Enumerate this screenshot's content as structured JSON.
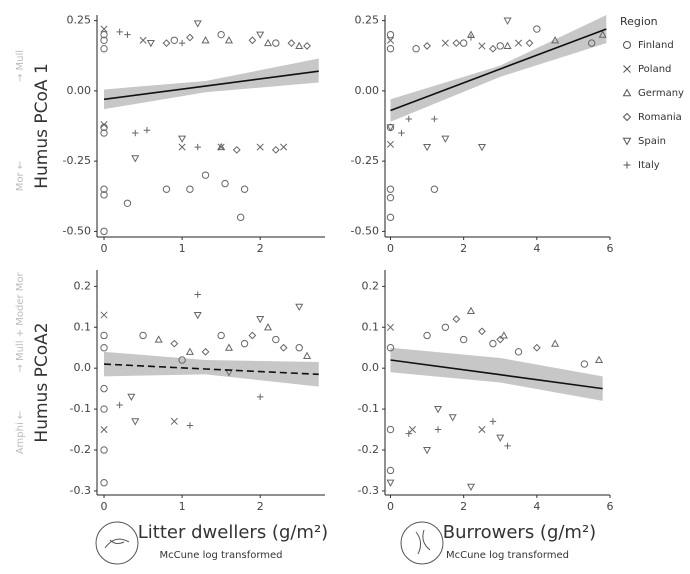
{
  "legend": {
    "title": "Region",
    "items": [
      {
        "name": "Finland",
        "marker": "circle"
      },
      {
        "name": "Poland",
        "marker": "x"
      },
      {
        "name": "Germany",
        "marker": "triangle"
      },
      {
        "name": "Romania",
        "marker": "diamond"
      },
      {
        "name": "Spain",
        "marker": "down"
      },
      {
        "name": "Italy",
        "marker": "plus"
      }
    ]
  },
  "chart_data": [
    {
      "type": "scatter",
      "ylabel": "Humus PCoA 1",
      "ylabel_note": [
        "Mor ←",
        "→ Mull"
      ],
      "xlim": [
        -0.09,
        2.83
      ],
      "ylim": [
        -0.52,
        0.27
      ],
      "xticks": [
        0,
        1,
        2
      ],
      "yticks": [
        {
          "value": -0.5,
          "label": "-0.50"
        },
        -0.25,
        {
          "value": 0,
          "label": "0.00"
        },
        0.25
      ],
      "series": [
        {
          "marker": "circle",
          "x": [
            0,
            0,
            0,
            0,
            0,
            0,
            0,
            0,
            0.3,
            0.8,
            1.1,
            1.3,
            1.55,
            1.8,
            1.75,
            0.9,
            1.5,
            2.2
          ],
          "y": [
            0.2,
            0.18,
            0.15,
            -0.13,
            -0.15,
            -0.35,
            -0.37,
            -0.5,
            -0.4,
            -0.35,
            -0.35,
            -0.3,
            -0.33,
            -0.35,
            -0.45,
            0.18,
            0.2,
            0.17
          ]
        },
        {
          "marker": "x",
          "x": [
            0,
            0,
            1.0,
            1.5,
            2.0,
            2.3,
            0.5
          ],
          "y": [
            0.22,
            -0.12,
            -0.2,
            -0.2,
            -0.2,
            -0.2,
            0.18
          ]
        },
        {
          "marker": "triangle",
          "x": [
            1.3,
            1.6,
            2.1,
            2.5,
            1.5
          ],
          "y": [
            0.18,
            0.18,
            0.17,
            0.16,
            -0.2
          ]
        },
        {
          "marker": "diamond",
          "x": [
            0.8,
            1.1,
            1.9,
            2.4,
            2.6,
            1.7,
            2.2
          ],
          "y": [
            0.17,
            0.19,
            0.18,
            0.17,
            0.16,
            -0.21,
            -0.21
          ]
        },
        {
          "marker": "down",
          "x": [
            1.2,
            0.6,
            0.4,
            1.0,
            2.0
          ],
          "y": [
            0.24,
            0.17,
            -0.24,
            -0.17,
            0.2
          ]
        },
        {
          "marker": "plus",
          "x": [
            0.2,
            0.3,
            0.4,
            0.55,
            1.2,
            1.0
          ],
          "y": [
            0.21,
            0.2,
            -0.15,
            -0.14,
            -0.2,
            0.17
          ]
        }
      ],
      "fit": {
        "dashed": false,
        "x": [
          0,
          1.3,
          2.75
        ],
        "y": [
          -0.03,
          0.017,
          0.07
        ],
        "lower": [
          -0.065,
          -0.005,
          0.03
        ],
        "upper": [
          0.005,
          0.035,
          0.115
        ]
      }
    },
    {
      "type": "scatter",
      "xlim": [
        -0.15,
        6.0
      ],
      "ylim": [
        -0.52,
        0.27
      ],
      "xticks": [
        0,
        2,
        4,
        6
      ],
      "yticks": [
        {
          "value": -0.5,
          "label": "-0.50"
        },
        -0.25,
        {
          "value": 0,
          "label": "0.00"
        },
        0.25
      ],
      "series": [
        {
          "marker": "circle",
          "x": [
            0,
            0,
            0,
            0,
            0,
            0,
            1.2,
            2,
            3,
            4,
            5.5,
            0.7
          ],
          "y": [
            0.2,
            0.15,
            -0.13,
            -0.35,
            -0.38,
            -0.45,
            -0.35,
            0.17,
            0.16,
            0.22,
            0.17,
            0.15
          ]
        },
        {
          "marker": "x",
          "x": [
            0,
            0,
            1.5,
            2.5,
            3.5
          ],
          "y": [
            0.18,
            -0.19,
            0.17,
            0.16,
            0.17
          ]
        },
        {
          "marker": "triangle",
          "x": [
            2.2,
            3.2,
            4.5,
            5.8
          ],
          "y": [
            0.2,
            0.16,
            0.18,
            0.2
          ]
        },
        {
          "marker": "diamond",
          "x": [
            1,
            1.8,
            2.8,
            3.8
          ],
          "y": [
            0.16,
            0.17,
            0.15,
            0.17
          ]
        },
        {
          "marker": "down",
          "x": [
            0,
            1,
            1.5,
            2.5,
            3.2
          ],
          "y": [
            -0.13,
            -0.2,
            -0.17,
            -0.2,
            0.25
          ]
        },
        {
          "marker": "plus",
          "x": [
            0.5,
            0.3,
            1.2,
            2.2
          ],
          "y": [
            -0.1,
            -0.15,
            -0.1,
            0.19
          ]
        }
      ],
      "fit": {
        "dashed": false,
        "x": [
          0,
          3,
          5.9
        ],
        "y": [
          -0.07,
          0.078,
          0.22
        ],
        "lower": [
          -0.11,
          0.05,
          0.17
        ],
        "upper": [
          -0.03,
          0.09,
          0.27
        ]
      }
    },
    {
      "type": "scatter",
      "ylabel": "Humus PCoA2",
      "ylabel_note": [
        "Amphi ←",
        "→ Mull + Moder Mor"
      ],
      "xlabel": "Litter dwellers (g/m²)",
      "xsub": "McCune log transformed",
      "xlim": [
        -0.09,
        2.83
      ],
      "ylim": [
        -0.31,
        0.24
      ],
      "xticks": [
        0,
        1,
        2
      ],
      "yticks": [
        -0.3,
        -0.2,
        -0.1,
        {
          "value": 0,
          "label": "0.0"
        },
        0.1,
        0.2
      ],
      "series": [
        {
          "marker": "circle",
          "x": [
            0,
            0,
            0,
            0,
            0,
            0,
            1.5,
            1.8,
            2.2,
            2.5,
            0.5,
            1.0
          ],
          "y": [
            0.08,
            0.05,
            -0.05,
            -0.1,
            -0.2,
            -0.28,
            0.08,
            0.06,
            0.07,
            0.05,
            0.08,
            0.02
          ]
        },
        {
          "marker": "x",
          "x": [
            0,
            0,
            0.9
          ],
          "y": [
            0.13,
            -0.15,
            -0.13
          ]
        },
        {
          "marker": "triangle",
          "x": [
            0.7,
            1.1,
            1.6,
            2.1,
            2.6
          ],
          "y": [
            0.07,
            0.04,
            0.05,
            0.1,
            0.03
          ]
        },
        {
          "marker": "diamond",
          "x": [
            0.9,
            1.3,
            1.9,
            2.3
          ],
          "y": [
            0.06,
            0.04,
            0.08,
            0.05
          ]
        },
        {
          "marker": "down",
          "x": [
            0.4,
            0.35,
            1.2,
            2.5,
            2.0,
            1.6
          ],
          "y": [
            -0.13,
            -0.07,
            0.13,
            0.15,
            0.12,
            -0.01
          ]
        },
        {
          "marker": "plus",
          "x": [
            0.2,
            1.1,
            2.0,
            1.2
          ],
          "y": [
            -0.09,
            -0.14,
            -0.07,
            0.18
          ]
        }
      ],
      "fit": {
        "dashed": true,
        "x": [
          0,
          1.3,
          2.75
        ],
        "y": [
          0.01,
          -0.002,
          -0.015
        ],
        "lower": [
          -0.02,
          -0.015,
          -0.045
        ],
        "upper": [
          0.04,
          0.02,
          0.015
        ]
      }
    },
    {
      "type": "scatter",
      "xlabel": "Burrowers (g/m²)",
      "xsub": "McCune log transformed",
      "xlim": [
        -0.15,
        6.0
      ],
      "ylim": [
        -0.31,
        0.24
      ],
      "xticks": [
        0,
        2,
        4,
        6
      ],
      "yticks": [
        -0.3,
        -0.2,
        -0.1,
        {
          "value": 0,
          "label": "0.0"
        },
        0.1,
        0.2
      ],
      "series": [
        {
          "marker": "circle",
          "x": [
            0,
            0,
            0,
            1.5,
            2,
            2.8,
            3.5,
            5.3,
            1
          ],
          "y": [
            0.05,
            -0.15,
            -0.25,
            0.1,
            0.07,
            0.06,
            0.04,
            0.01,
            0.08
          ]
        },
        {
          "marker": "x",
          "x": [
            0,
            0.6,
            2.5
          ],
          "y": [
            0.1,
            -0.15,
            -0.15
          ]
        },
        {
          "marker": "triangle",
          "x": [
            2.2,
            3.1,
            4.5,
            5.7
          ],
          "y": [
            0.14,
            0.08,
            0.06,
            0.02
          ]
        },
        {
          "marker": "diamond",
          "x": [
            1.8,
            2.5,
            3,
            4
          ],
          "y": [
            0.12,
            0.09,
            0.07,
            0.05
          ]
        },
        {
          "marker": "down",
          "x": [
            0,
            1.3,
            1.7,
            2.2,
            3,
            1
          ],
          "y": [
            -0.28,
            -0.1,
            -0.12,
            -0.29,
            -0.17,
            -0.2
          ]
        },
        {
          "marker": "plus",
          "x": [
            0.5,
            1.3,
            2.8,
            3.2
          ],
          "y": [
            -0.16,
            -0.15,
            -0.13,
            -0.19
          ]
        }
      ],
      "fit": {
        "dashed": false,
        "x": [
          0,
          3,
          5.8
        ],
        "y": [
          0.02,
          -0.016,
          -0.05
        ],
        "lower": [
          -0.01,
          -0.035,
          -0.08
        ],
        "upper": [
          0.05,
          0.025,
          -0.02
        ]
      }
    }
  ]
}
